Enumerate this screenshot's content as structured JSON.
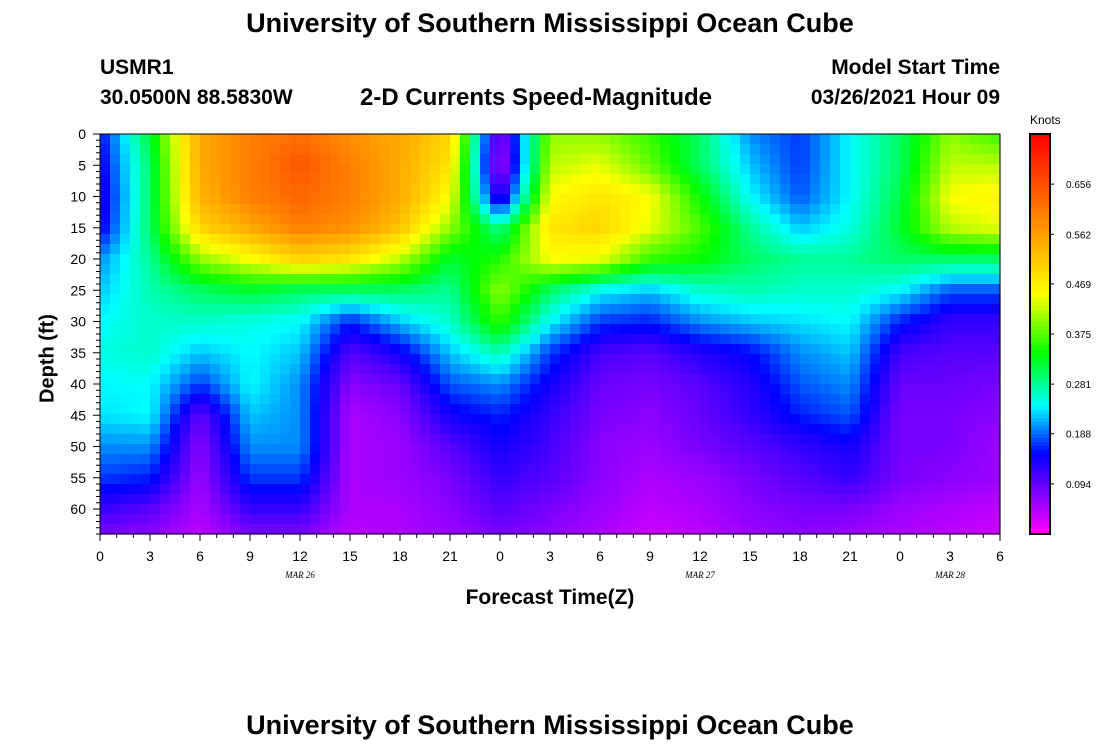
{
  "header": {
    "title_top": "University of Southern Mississippi Ocean Cube",
    "station_id": "USMR1",
    "station_coords": "30.0500N 88.5830W",
    "plot_title": "2-D Currents Speed-Magnitude",
    "model_start_label": "Model Start Time",
    "model_start_value": "03/26/2021 Hour 09"
  },
  "footer": {
    "title_bottom": "University of Southern Mississippi Ocean Cube"
  },
  "chart_data": {
    "type": "heatmap",
    "title": "2-D Currents Speed-Magnitude",
    "xlabel": "Forecast Time(Z)",
    "ylabel": "Depth (ft)",
    "x_tick_labels": [
      "0",
      "3",
      "6",
      "9",
      "12",
      "15",
      "18",
      "21",
      "0",
      "3",
      "6",
      "9",
      "12",
      "15",
      "18",
      "21",
      "0",
      "3",
      "6"
    ],
    "x_range_hours": [
      0,
      54
    ],
    "date_labels": [
      {
        "text": "MAR 26",
        "hour": 12
      },
      {
        "text": "MAR 27",
        "hour": 36
      },
      {
        "text": "MAR 28",
        "hour": 51
      }
    ],
    "y_tick_labels": [
      "0",
      "5",
      "10",
      "15",
      "20",
      "25",
      "30",
      "35",
      "40",
      "45",
      "50",
      "55",
      "60"
    ],
    "y_range_ft": [
      0,
      64
    ],
    "colorbar": {
      "unit": "Knots",
      "tick_labels": [
        "0.656",
        "0.562",
        "0.469",
        "0.375",
        "0.281",
        "0.188",
        "0.094"
      ],
      "range": [
        0,
        0.75
      ]
    },
    "value_grid": {
      "hours": [
        0,
        3,
        6,
        9,
        12,
        15,
        18,
        21,
        24,
        27,
        30,
        33,
        36,
        39,
        42,
        45,
        48,
        51,
        54
      ],
      "depths_ft": [
        0,
        5,
        10,
        15,
        20,
        25,
        30,
        35,
        40,
        45,
        50,
        55,
        60,
        64
      ],
      "speed_knots": [
        [
          0.15,
          0.32,
          0.55,
          0.6,
          0.62,
          0.58,
          0.55,
          0.5,
          0.06,
          0.4,
          0.4,
          0.36,
          0.3,
          0.2,
          0.17,
          0.24,
          0.3,
          0.4,
          0.36
        ],
        [
          0.14,
          0.3,
          0.55,
          0.6,
          0.65,
          0.6,
          0.55,
          0.48,
          0.04,
          0.42,
          0.44,
          0.38,
          0.3,
          0.22,
          0.17,
          0.24,
          0.3,
          0.42,
          0.42
        ],
        [
          0.13,
          0.3,
          0.54,
          0.6,
          0.63,
          0.6,
          0.55,
          0.45,
          0.1,
          0.45,
          0.48,
          0.45,
          0.34,
          0.24,
          0.18,
          0.24,
          0.31,
          0.45,
          0.46
        ],
        [
          0.14,
          0.3,
          0.5,
          0.55,
          0.6,
          0.58,
          0.52,
          0.4,
          0.28,
          0.48,
          0.5,
          0.44,
          0.37,
          0.28,
          0.22,
          0.25,
          0.32,
          0.42,
          0.44
        ],
        [
          0.2,
          0.28,
          0.4,
          0.45,
          0.5,
          0.48,
          0.42,
          0.32,
          0.35,
          0.45,
          0.44,
          0.36,
          0.34,
          0.3,
          0.28,
          0.28,
          0.3,
          0.3,
          0.3
        ],
        [
          0.22,
          0.27,
          0.3,
          0.32,
          0.3,
          0.3,
          0.3,
          0.28,
          0.4,
          0.3,
          0.24,
          0.22,
          0.26,
          0.27,
          0.26,
          0.26,
          0.24,
          0.18,
          0.18
        ],
        [
          0.24,
          0.26,
          0.26,
          0.25,
          0.24,
          0.16,
          0.22,
          0.26,
          0.36,
          0.24,
          0.17,
          0.16,
          0.2,
          0.22,
          0.23,
          0.24,
          0.16,
          0.12,
          0.12
        ],
        [
          0.25,
          0.26,
          0.22,
          0.24,
          0.22,
          0.1,
          0.14,
          0.22,
          0.27,
          0.17,
          0.11,
          0.1,
          0.13,
          0.15,
          0.2,
          0.22,
          0.11,
          0.1,
          0.1
        ],
        [
          0.24,
          0.24,
          0.17,
          0.24,
          0.2,
          0.07,
          0.09,
          0.18,
          0.2,
          0.14,
          0.09,
          0.08,
          0.1,
          0.13,
          0.18,
          0.2,
          0.09,
          0.09,
          0.08
        ],
        [
          0.23,
          0.24,
          0.09,
          0.22,
          0.2,
          0.05,
          0.07,
          0.14,
          0.16,
          0.12,
          0.08,
          0.07,
          0.09,
          0.12,
          0.16,
          0.18,
          0.08,
          0.08,
          0.07
        ],
        [
          0.2,
          0.2,
          0.07,
          0.2,
          0.2,
          0.05,
          0.06,
          0.1,
          0.14,
          0.11,
          0.07,
          0.06,
          0.08,
          0.1,
          0.12,
          0.14,
          0.08,
          0.08,
          0.06
        ],
        [
          0.17,
          0.16,
          0.06,
          0.17,
          0.17,
          0.05,
          0.06,
          0.08,
          0.12,
          0.1,
          0.07,
          0.05,
          0.06,
          0.08,
          0.1,
          0.12,
          0.08,
          0.07,
          0.06
        ],
        [
          0.12,
          0.1,
          0.05,
          0.12,
          0.12,
          0.05,
          0.05,
          0.07,
          0.1,
          0.08,
          0.06,
          0.04,
          0.05,
          0.07,
          0.08,
          0.08,
          0.06,
          0.05,
          0.04
        ],
        [
          0.08,
          0.07,
          0.04,
          0.08,
          0.08,
          0.04,
          0.05,
          0.06,
          0.08,
          0.07,
          0.05,
          0.03,
          0.04,
          0.06,
          0.07,
          0.06,
          0.05,
          0.04,
          0.03
        ]
      ]
    },
    "accent_colors": {
      "max": "#ff1a1a",
      "mid": "#ffff00",
      "low": "#0000ff",
      "min": "#ff00ff"
    }
  }
}
